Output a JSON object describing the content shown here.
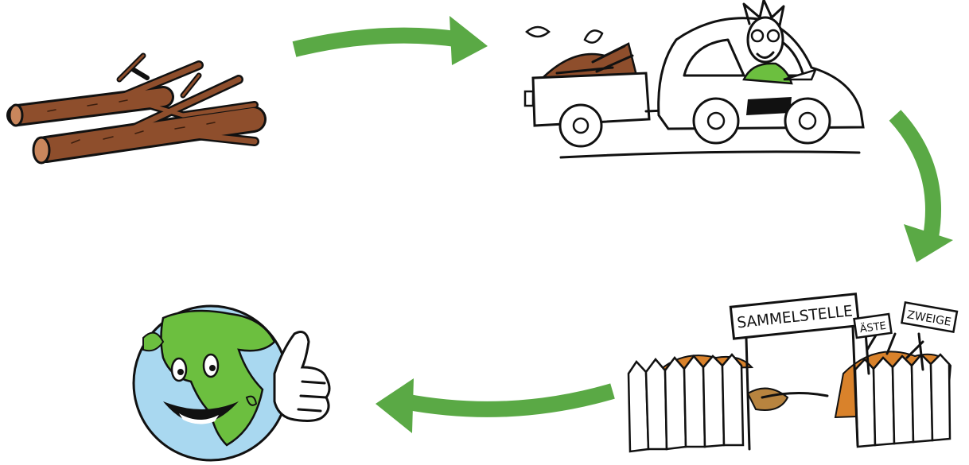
{
  "signs": {
    "main": "SAMMELSTELLE",
    "left": "ÄSTE",
    "right": "ZWEIGE"
  }
}
